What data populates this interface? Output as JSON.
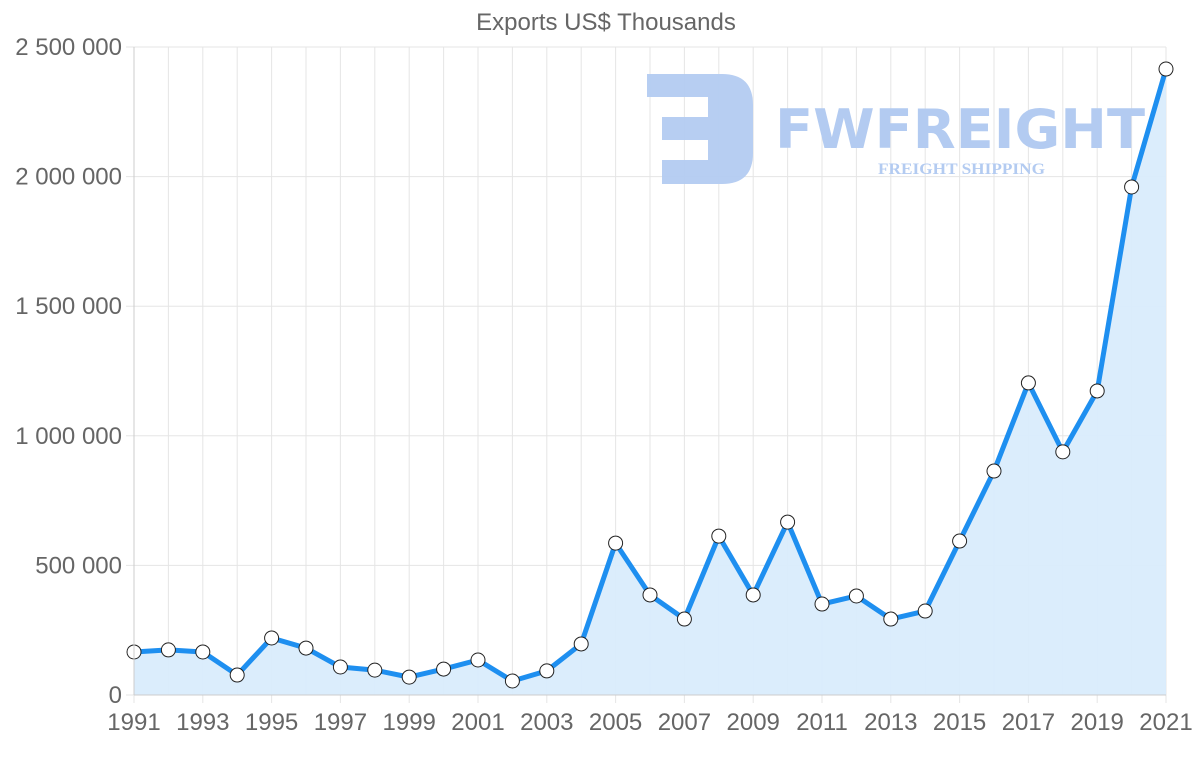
{
  "chart_data": {
    "type": "line",
    "title": "Exports US$ Thousands",
    "xlabel": "",
    "ylabel": "",
    "fill": true,
    "grid": true,
    "legend": null,
    "ylim": [
      0,
      2500000
    ],
    "y_ticks": [
      "0",
      "500 000",
      "1 000 000",
      "1 500 000",
      "2 000 000",
      "2 500 000"
    ],
    "y_tick_values": [
      0,
      500000,
      1000000,
      1500000,
      2000000,
      2500000
    ],
    "x_tick_labels": [
      "1991",
      "1993",
      "1995",
      "1997",
      "1999",
      "2001",
      "2003",
      "2005",
      "2007",
      "2009",
      "2011",
      "2013",
      "2015",
      "2017",
      "2019",
      "2021"
    ],
    "categories": [
      "1991",
      "1992",
      "1993",
      "1994",
      "1995",
      "1996",
      "1997",
      "1998",
      "1999",
      "2000",
      "2001",
      "2002",
      "2003",
      "2004",
      "2005",
      "2006",
      "2007",
      "2008",
      "2009",
      "2010",
      "2011",
      "2012",
      "2013",
      "2014",
      "2015",
      "2016",
      "2017",
      "2018",
      "2019",
      "2020",
      "2021"
    ],
    "series": [
      {
        "name": "Exports US$ Thousands",
        "color": "#1e8ff0",
        "fill_color": "#d9ecfc",
        "values": [
          166000,
          174000,
          166000,
          77000,
          220000,
          181000,
          108000,
          96000,
          69000,
          100000,
          135000,
          54000,
          93000,
          197000,
          586000,
          386000,
          293000,
          613000,
          386000,
          667000,
          351000,
          382000,
          293000,
          324000,
          594000,
          864000,
          1204000,
          938000,
          1173000,
          1960000,
          2415000
        ]
      }
    ]
  },
  "watermark": {
    "brand": "FWFREIGHT",
    "tagline": "FREIGHT SHIPPING",
    "color": "#b3cbf1"
  }
}
